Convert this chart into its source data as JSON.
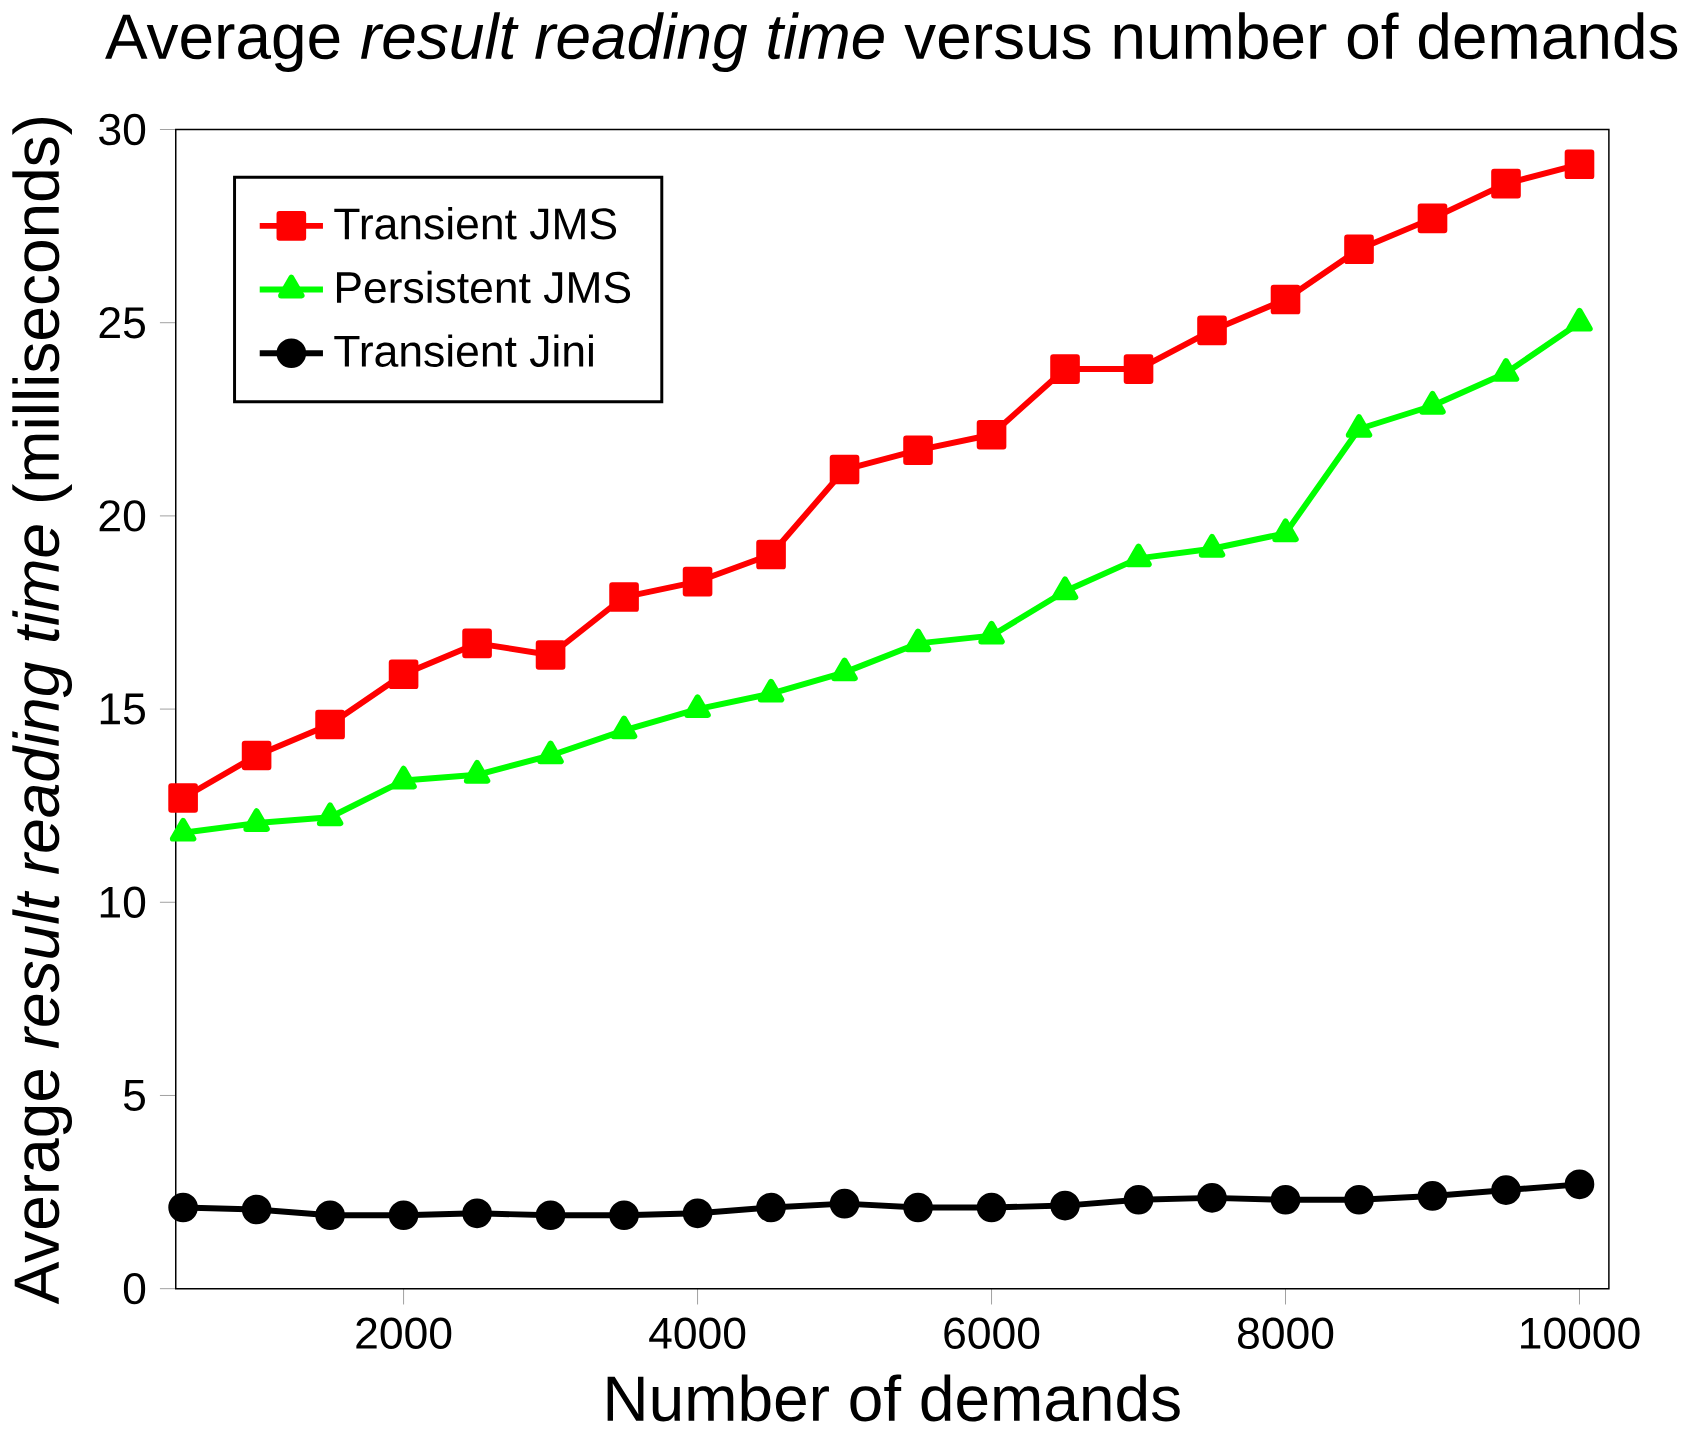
{
  "chart_data": {
    "type": "line",
    "title": "Average *result reading time* versus number of demands",
    "xlabel": "Number of demands",
    "ylabel": "Average *result reading time* (milliseconds)",
    "x": [
      500,
      1000,
      1500,
      2000,
      2500,
      3000,
      3500,
      4000,
      4500,
      5000,
      5500,
      6000,
      6500,
      7000,
      7500,
      8000,
      8500,
      9000,
      9500,
      10000
    ],
    "series": [
      {
        "name": "Transient JMS",
        "color": "#ff0000",
        "marker": "square",
        "values": [
          12.7,
          13.8,
          14.6,
          15.9,
          16.7,
          16.4,
          17.9,
          18.3,
          19.0,
          21.2,
          21.7,
          22.1,
          23.8,
          23.8,
          24.8,
          25.6,
          26.9,
          27.7,
          28.6,
          29.1
        ]
      },
      {
        "name": "Persistent JMS",
        "color": "#00ff00",
        "marker": "triangle",
        "values": [
          11.8,
          12.05,
          12.2,
          13.15,
          13.3,
          13.8,
          14.45,
          15.0,
          15.4,
          15.95,
          16.7,
          16.9,
          18.05,
          18.9,
          19.15,
          19.55,
          22.25,
          22.85,
          23.7,
          25.0
        ]
      },
      {
        "name": "Transient Jini",
        "color": "#000000",
        "marker": "circle",
        "values": [
          2.1,
          2.05,
          1.9,
          1.9,
          1.95,
          1.9,
          1.9,
          1.95,
          2.1,
          2.2,
          2.1,
          2.1,
          2.15,
          2.3,
          2.35,
          2.3,
          2.3,
          2.4,
          2.55,
          2.7
        ]
      }
    ],
    "xlim": [
      450,
      10200
    ],
    "ylim": [
      0,
      30
    ],
    "xticks": [
      2000,
      4000,
      6000,
      8000,
      10000
    ],
    "yticks": [
      0,
      5,
      10,
      15,
      20,
      25,
      30
    ],
    "legend": "top left",
    "grid": false,
    "line_style": "solid"
  }
}
